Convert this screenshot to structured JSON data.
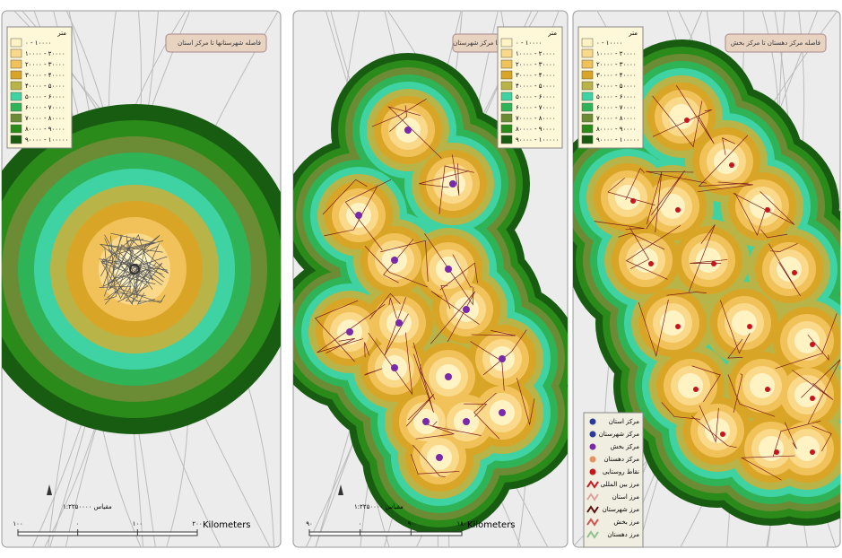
{
  "panels": [
    {
      "title": "فاصله شهرستانها تا مرکز استان",
      "legend_header": "متر",
      "legend": [
        "۰ - ۱۰۰۰۰",
        "۱۰۰۰۰ - ۲۰۰۰۰",
        "۲۰۰۰۰ - ۳۰۰۰۰",
        "۳۰۰۰۰ - ۴۰۰۰۰",
        "۴۰۰۰۰ - ۵۰۰۰۰",
        "۵۰۰۰۰ - ۶۰۰۰۰",
        "۶۰۰۰۰ - ۷۰۰۰۰",
        "۷۰۰۰۰ - ۸۰۰۰۰",
        "۸۰۰۰۰ - ۹۰۰۰۰",
        "۹۰۰۰۰ - ۱۰۰۰۰۰"
      ],
      "scale_label": "مقیاس ۱:۲۲۵۰۰۰۰",
      "scale_ticks": [
        "۱۰۰",
        "۰",
        "۱۰۰",
        "۲۰۰"
      ],
      "unit": "Kilometers"
    },
    {
      "title": "فاصله مرکز بخش تا مرکز شهرستان",
      "legend_header": "متر",
      "legend": [
        "۰ - ۱۰۰۰۰",
        "۱۰۰۰۰ - ۲۰۰۰۰",
        "۲۰۰۰۰ - ۳۰۰۰۰",
        "۳۰۰۰۰ - ۴۰۰۰۰",
        "۴۰۰۰۰ - ۵۰۰۰۰",
        "۵۰۰۰۰ - ۶۰۰۰۰",
        "۶۰۰۰۰ - ۷۰۰۰۰",
        "۷۰۰۰۰ - ۸۰۰۰۰",
        "۸۰۰۰۰ - ۹۰۰۰۰",
        "۹۰۰۰۰ - ۱۰۰۰۰۰"
      ],
      "scale_label": "مقیاس ۱:۲۲۵۰۰۰۰",
      "scale_ticks": [
        "۹۰",
        "۰",
        "۹۰",
        "۱۸۰"
      ],
      "unit": "Kilometers"
    },
    {
      "title": "فاصله مرکز دهستان تا مرکز بخش",
      "legend_header": "متر",
      "legend": [
        "۰ - ۱۰۰۰۰",
        "۱۰۰۰۰ - ۲۰۰۰۰",
        "۲۰۰۰۰ - ۳۰۰۰۰",
        "۳۰۰۰۰ - ۴۰۰۰۰",
        "۴۰۰۰۰ - ۵۰۰۰۰",
        "۵۰۰۰۰ - ۶۰۰۰۰",
        "۶۰۰۰۰ - ۷۰۰۰۰",
        "۷۰۰۰۰ - ۸۰۰۰۰",
        "۸۰۰۰۰ - ۹۰۰۰۰",
        "۹۰۰۰۰ - ۱۰۰۰۰۰"
      ],
      "key": [
        "مرکز استان",
        "مرکز شهرستان",
        "مرکز بخش",
        "مرکز دهستان",
        "نقاط روستایی",
        "مرز بین المللی",
        "مرز استان",
        "مرز شهرستان",
        "مرز بخش",
        "مرز دهستان"
      ]
    }
  ]
}
